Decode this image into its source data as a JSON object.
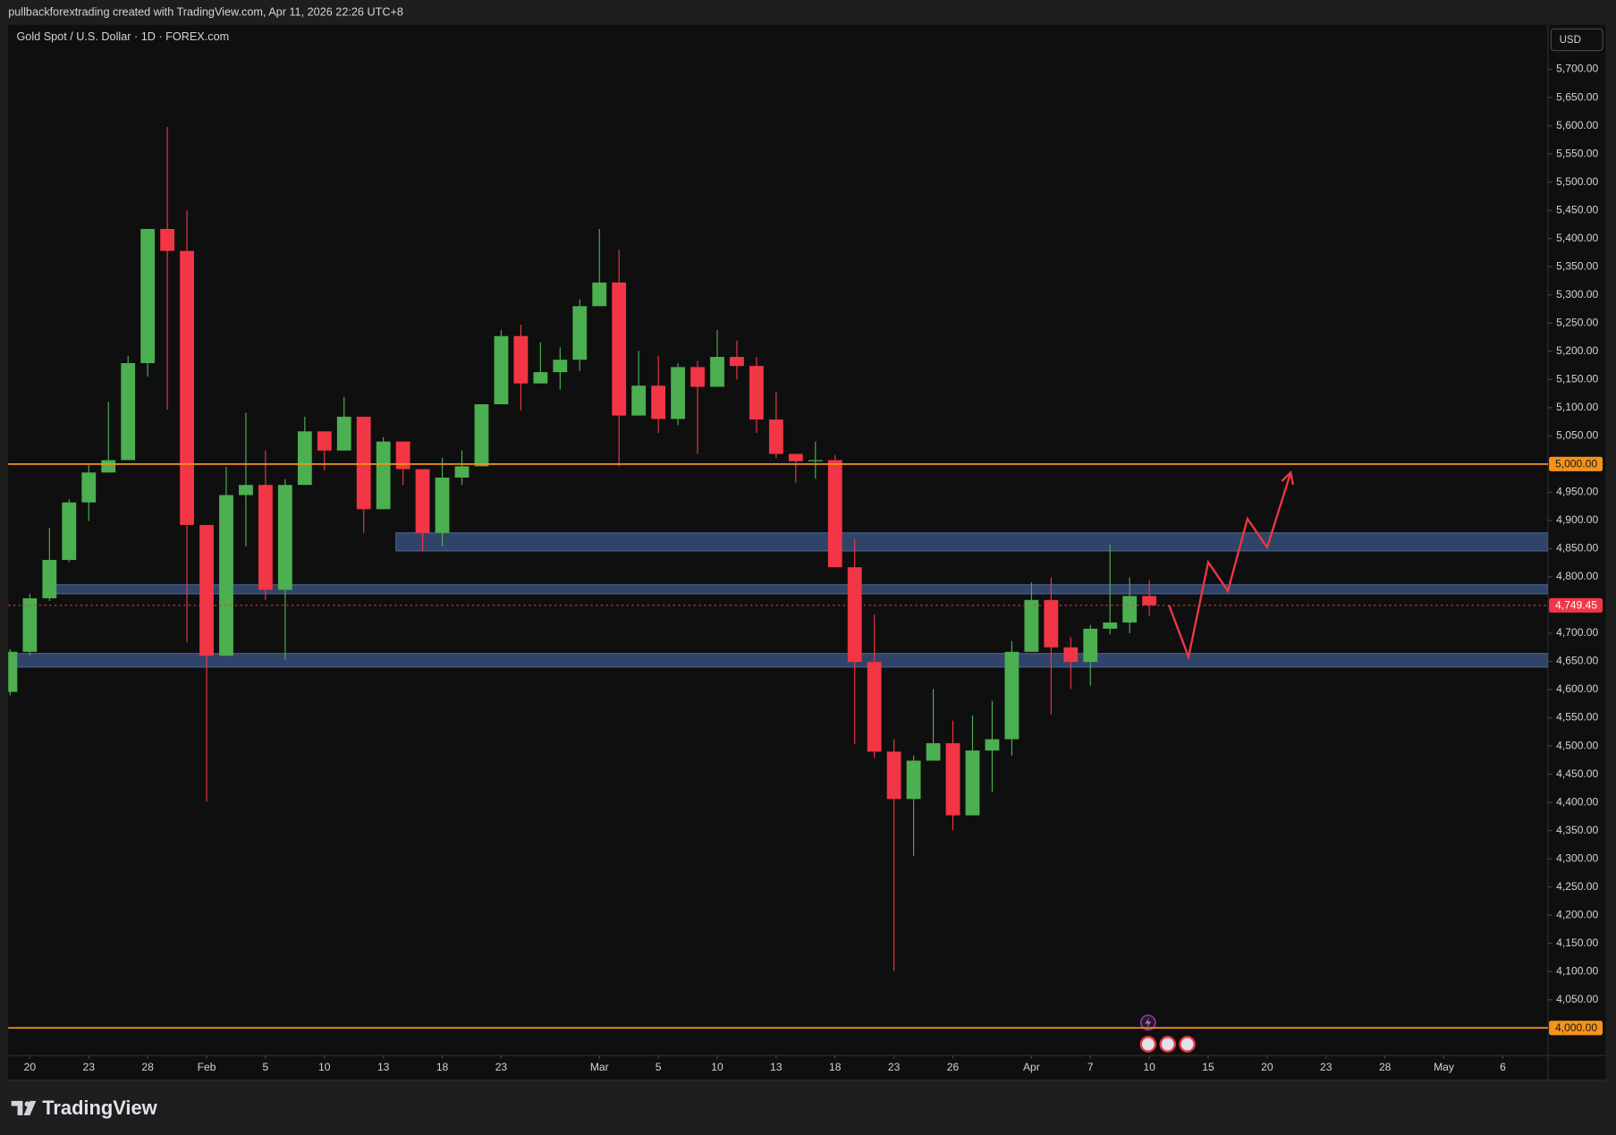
{
  "chart_data": {
    "type": "candlestick",
    "header": "pullbackforextrading created with TradingView.com, Apr 11, 2026 22:26 UTC+8",
    "title": "Gold Spot / U.S. Dollar · 1D · FOREX.com",
    "currency": "USD",
    "brand": "TradingView",
    "up_color": "#4caf50",
    "down_color": "#f23645",
    "x": [
      0,
      1,
      2,
      3,
      4,
      5,
      6,
      7,
      8,
      9,
      10,
      11,
      12,
      13,
      14,
      15,
      16,
      17,
      18,
      19,
      20,
      21,
      22,
      23,
      24,
      25,
      26,
      27,
      28,
      29,
      30,
      31,
      32,
      33,
      34,
      35,
      36,
      37,
      38,
      39,
      40,
      41,
      42,
      43,
      44,
      45,
      46,
      47,
      48,
      49,
      50,
      51,
      52,
      53,
      54,
      55,
      56,
      57,
      58
    ],
    "open": [
      4596,
      4667,
      4762,
      4830,
      4932,
      4985,
      5007,
      5179,
      5417,
      5378,
      4892,
      4660,
      4945,
      4963,
      4777,
      4963,
      5058,
      5024,
      5084,
      4920,
      5040,
      4991,
      4878,
      4976,
      4996,
      5106,
      5227,
      5143,
      5163,
      5185,
      5280,
      5322,
      5086,
      5139,
      5080,
      5172,
      5137,
      5190,
      5174,
      5079,
      5018,
      5005,
      5007,
      4817,
      4649,
      4490,
      4406,
      4474,
      4505,
      4377,
      4492,
      4512,
      4667,
      4759,
      4675,
      4649,
      4708,
      4719,
      4766
    ],
    "high": [
      4672,
      4770,
      4887,
      4938,
      4998,
      5110,
      5192,
      5417,
      5598,
      5450,
      4892,
      4995,
      5091,
      5024,
      4973,
      5084,
      5058,
      5119,
      5084,
      5048,
      5040,
      4991,
      5011,
      5024,
      5106,
      5238,
      5247,
      5216,
      5207,
      5292,
      5417,
      5380,
      5201,
      5192,
      5179,
      5183,
      5238,
      5219,
      5190,
      5128,
      5018,
      5040,
      5016,
      4867,
      4733,
      4512,
      4483,
      4601,
      4545,
      4554,
      4580,
      4686,
      4790,
      4799,
      4693,
      4715,
      4857,
      4799,
      4794
    ],
    "low": [
      4590,
      4660,
      4757,
      4826,
      4899,
      4985,
      5007,
      5155,
      5097,
      4684,
      4402,
      4660,
      4854,
      4759,
      4653,
      4963,
      4989,
      5024,
      4878,
      4920,
      4963,
      4846,
      4854,
      4963,
      4996,
      5106,
      5095,
      5143,
      5132,
      5165,
      5280,
      4996,
      5086,
      5055,
      5069,
      5018,
      5137,
      5150,
      5055,
      5011,
      4967,
      4974,
      4817,
      4503,
      4479,
      4101,
      4305,
      4474,
      4351,
      4377,
      4419,
      4483,
      4667,
      4556,
      4601,
      4607,
      4698,
      4700,
      4731
    ],
    "close": [
      4667,
      4762,
      4830,
      4932,
      4985,
      5007,
      5179,
      5417,
      5378,
      4892,
      4660,
      4945,
      4963,
      4777,
      4963,
      5058,
      5024,
      5084,
      4920,
      5040,
      4991,
      4878,
      4976,
      4996,
      5106,
      5227,
      5143,
      5163,
      5185,
      5280,
      5322,
      5086,
      5139,
      5080,
      5172,
      5137,
      5190,
      5174,
      5079,
      5018,
      5005,
      5007,
      4817,
      4649,
      4490,
      4406,
      4474,
      4505,
      4377,
      4492,
      4512,
      4667,
      4759,
      4675,
      4649,
      4708,
      4719,
      4766,
      4749.45
    ],
    "xlim": [
      -0.1,
      78.3
    ],
    "ylim": [
      3951,
      5779
    ],
    "xticks": [
      {
        "value": 1,
        "label": "20"
      },
      {
        "value": 4,
        "label": "23"
      },
      {
        "value": 7,
        "label": "28"
      },
      {
        "value": 10,
        "label": "Feb"
      },
      {
        "value": 13,
        "label": "5"
      },
      {
        "value": 16,
        "label": "10"
      },
      {
        "value": 19,
        "label": "13"
      },
      {
        "value": 22,
        "label": "18"
      },
      {
        "value": 25,
        "label": "23"
      },
      {
        "value": 30,
        "label": "Mar"
      },
      {
        "value": 33,
        "label": "5"
      },
      {
        "value": 36,
        "label": "10"
      },
      {
        "value": 39,
        "label": "13"
      },
      {
        "value": 42,
        "label": "18"
      },
      {
        "value": 45,
        "label": "23"
      },
      {
        "value": 48,
        "label": "26"
      },
      {
        "value": 52,
        "label": "Apr"
      },
      {
        "value": 55,
        "label": "7"
      },
      {
        "value": 58,
        "label": "10"
      },
      {
        "value": 61,
        "label": "15"
      },
      {
        "value": 64,
        "label": "20"
      },
      {
        "value": 67,
        "label": "23"
      },
      {
        "value": 70,
        "label": "28"
      },
      {
        "value": 73,
        "label": "May"
      },
      {
        "value": 76,
        "label": "6"
      }
    ],
    "yticks": [
      {
        "value": 4050,
        "label": "4,050.00"
      },
      {
        "value": 4100,
        "label": "4,100.00"
      },
      {
        "value": 4150,
        "label": "4,150.00"
      },
      {
        "value": 4200,
        "label": "4,200.00"
      },
      {
        "value": 4250,
        "label": "4,250.00"
      },
      {
        "value": 4300,
        "label": "4,300.00"
      },
      {
        "value": 4350,
        "label": "4,350.00"
      },
      {
        "value": 4400,
        "label": "4,400.00"
      },
      {
        "value": 4450,
        "label": "4,450.00"
      },
      {
        "value": 4500,
        "label": "4,500.00"
      },
      {
        "value": 4550,
        "label": "4,550.00"
      },
      {
        "value": 4600,
        "label": "4,600.00"
      },
      {
        "value": 4650,
        "label": "4,650.00"
      },
      {
        "value": 4700,
        "label": "4,700.00"
      },
      {
        "value": 4800,
        "label": "4,800.00"
      },
      {
        "value": 4850,
        "label": "4,850.00"
      },
      {
        "value": 4900,
        "label": "4,900.00"
      },
      {
        "value": 4950,
        "label": "4,950.00"
      },
      {
        "value": 5050,
        "label": "5,050.00"
      },
      {
        "value": 5100,
        "label": "5,100.00"
      },
      {
        "value": 5150,
        "label": "5,150.00"
      },
      {
        "value": 5200,
        "label": "5,200.00"
      },
      {
        "value": 5250,
        "label": "5,250.00"
      },
      {
        "value": 5300,
        "label": "5,300.00"
      },
      {
        "value": 5350,
        "label": "5,350.00"
      },
      {
        "value": 5400,
        "label": "5,400.00"
      },
      {
        "value": 5450,
        "label": "5,450.00"
      },
      {
        "value": 5500,
        "label": "5,500.00"
      },
      {
        "value": 5550,
        "label": "5,550.00"
      },
      {
        "value": 5600,
        "label": "5,600.00"
      },
      {
        "value": 5650,
        "label": "5,650.00"
      },
      {
        "value": 5700,
        "label": "5,700.00"
      }
    ],
    "grid": false,
    "zones": [
      {
        "from": 20,
        "low": 4846,
        "high": 4878
      },
      {
        "from": 2.3,
        "low": 4770,
        "high": 4786
      },
      {
        "from": -0.1,
        "low": 4640,
        "high": 4664
      }
    ],
    "zone_color": "#2f4468",
    "levels": [
      {
        "value": 5000,
        "label": "5,000.00",
        "color": "#f7931a"
      },
      {
        "value": 4000,
        "label": "4,000.00",
        "color": "#f7931a"
      }
    ],
    "last_price": {
      "value": 4749.45,
      "label": "4,749.45",
      "color": "#f23645"
    },
    "projection": {
      "x": [
        59,
        60,
        61,
        62,
        63,
        64,
        65.2
      ],
      "values": [
        4750,
        4658,
        4826,
        4775,
        4903,
        4852,
        4985
      ],
      "color": "#f23645"
    }
  }
}
